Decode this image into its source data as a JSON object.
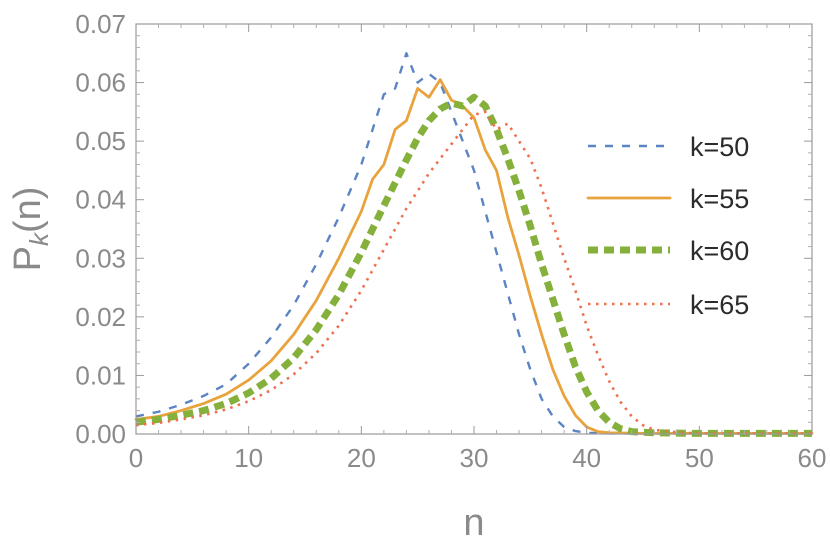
{
  "chart_data": {
    "type": "line",
    "xlabel": "n",
    "ylabel": {
      "base": "P",
      "sub": "k",
      "tail": "(n)"
    },
    "xlim": [
      0,
      60
    ],
    "ylim": [
      0,
      0.07
    ],
    "x_ticks": [
      0,
      10,
      20,
      30,
      40,
      50,
      60
    ],
    "x_tick_labels": [
      "0",
      "10",
      "20",
      "30",
      "40",
      "50",
      "60"
    ],
    "y_ticks": [
      0,
      0.01,
      0.02,
      0.03,
      0.04,
      0.05,
      0.06,
      0.07
    ],
    "y_tick_labels": [
      "0.00",
      "0.01",
      "0.02",
      "0.03",
      "0.04",
      "0.05",
      "0.06",
      "0.07"
    ],
    "grid": false,
    "legend_position": "right",
    "series": [
      {
        "name": "k=50",
        "color": "#5b84c4",
        "style": "dashed",
        "x": [
          0,
          2,
          4,
          6,
          8,
          10,
          12,
          14,
          16,
          18,
          20,
          21,
          22,
          23,
          24,
          25,
          26,
          27,
          28,
          29,
          30,
          31,
          32,
          33,
          34,
          35,
          36,
          37,
          38,
          39,
          40,
          42,
          45,
          50,
          55,
          60
        ],
        "y": [
          0.003,
          0.0038,
          0.005,
          0.0065,
          0.0085,
          0.012,
          0.0165,
          0.022,
          0.029,
          0.037,
          0.046,
          0.052,
          0.058,
          0.059,
          0.065,
          0.06,
          0.0615,
          0.06,
          0.055,
          0.05,
          0.045,
          0.038,
          0.031,
          0.024,
          0.017,
          0.011,
          0.006,
          0.003,
          0.0012,
          0.0005,
          0.0002,
          0.0001,
          0.0001,
          0.0001,
          0.0001,
          0.0001
        ]
      },
      {
        "name": "k=55",
        "color": "#e8a33d",
        "style": "solid",
        "x": [
          0,
          2,
          4,
          6,
          8,
          10,
          12,
          14,
          16,
          18,
          20,
          21,
          22,
          23,
          24,
          25,
          26,
          27,
          28,
          29,
          30,
          31,
          32,
          33,
          34,
          35,
          36,
          37,
          38,
          39,
          40,
          41,
          42,
          45,
          50,
          55,
          60
        ],
        "y": [
          0.0025,
          0.003,
          0.004,
          0.0052,
          0.0068,
          0.0092,
          0.0125,
          0.017,
          0.0228,
          0.03,
          0.038,
          0.0435,
          0.046,
          0.052,
          0.0535,
          0.059,
          0.0575,
          0.0605,
          0.057,
          0.056,
          0.054,
          0.0485,
          0.045,
          0.037,
          0.0305,
          0.0235,
          0.017,
          0.011,
          0.0065,
          0.0032,
          0.0012,
          0.0004,
          0.0002,
          0.0001,
          0.0001,
          0.0001,
          0.0001
        ]
      },
      {
        "name": "k=60",
        "color": "#84b03b",
        "style": "thickdashed",
        "x": [
          0,
          2,
          4,
          6,
          8,
          10,
          12,
          14,
          16,
          18,
          20,
          22,
          24,
          25,
          26,
          27,
          28,
          29,
          30,
          31,
          32,
          33,
          34,
          35,
          36,
          37,
          38,
          39,
          40,
          41,
          42,
          43,
          44,
          46,
          50,
          55,
          60
        ],
        "y": [
          0.002,
          0.0025,
          0.0032,
          0.004,
          0.0052,
          0.007,
          0.0095,
          0.013,
          0.0178,
          0.0238,
          0.031,
          0.039,
          0.0468,
          0.0505,
          0.0535,
          0.0555,
          0.0565,
          0.056,
          0.0575,
          0.056,
          0.052,
          0.047,
          0.0415,
          0.0355,
          0.029,
          0.023,
          0.017,
          0.0115,
          0.0072,
          0.004,
          0.002,
          0.0009,
          0.0004,
          0.0002,
          0.0001,
          0.0001,
          0.0001
        ]
      },
      {
        "name": "k=65",
        "color": "#ef6e4e",
        "style": "dotted",
        "x": [
          0,
          2,
          4,
          6,
          8,
          10,
          12,
          14,
          16,
          18,
          20,
          22,
          24,
          26,
          28,
          29,
          30,
          31,
          32,
          33,
          34,
          35,
          36,
          37,
          38,
          39,
          40,
          41,
          42,
          43,
          44,
          45,
          46,
          48,
          50,
          55,
          60
        ],
        "y": [
          0.0015,
          0.0019,
          0.0025,
          0.0032,
          0.0042,
          0.0056,
          0.0075,
          0.0102,
          0.0138,
          0.0185,
          0.0245,
          0.0315,
          0.0385,
          0.0445,
          0.0495,
          0.052,
          0.0545,
          0.055,
          0.052,
          0.053,
          0.05,
          0.047,
          0.042,
          0.036,
          0.03,
          0.0245,
          0.0185,
          0.0135,
          0.009,
          0.0055,
          0.003,
          0.0015,
          0.0007,
          0.0003,
          0.0001,
          0.0001,
          0.0001
        ]
      }
    ]
  }
}
